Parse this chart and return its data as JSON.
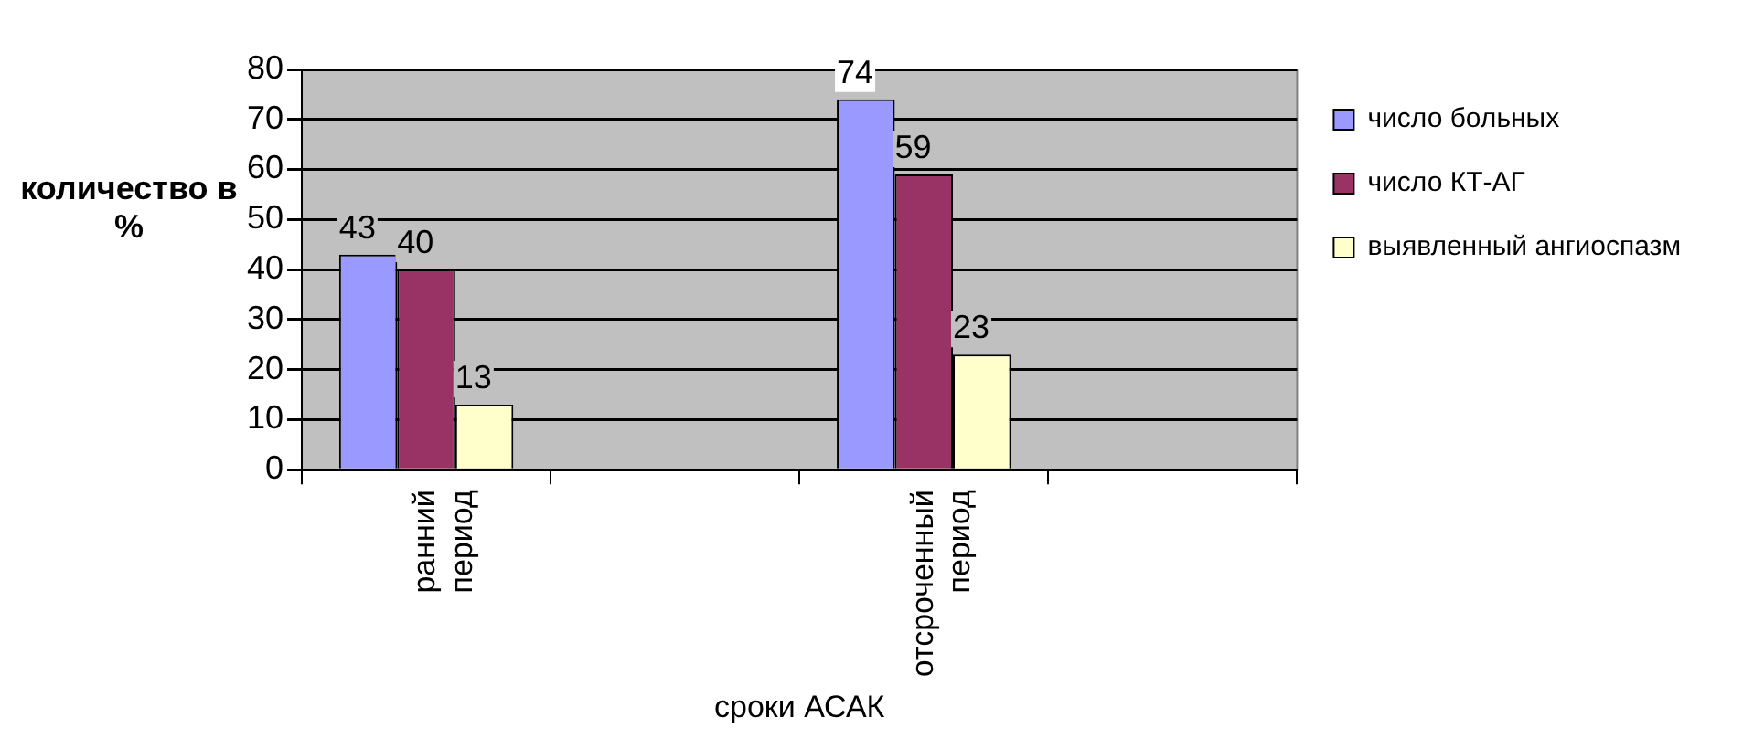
{
  "chart_data": {
    "type": "bar",
    "xlabel": "сроки АСАК",
    "ylabel": "количество  в %",
    "categories": [
      "ранний период",
      null,
      "отсроченный период",
      null
    ],
    "series": [
      {
        "name": "число больных",
        "color": "#9999ff",
        "values": [
          43,
          null,
          74,
          null
        ]
      },
      {
        "name": "число КТ-АГ",
        "color": "#993366",
        "values": [
          40,
          null,
          59,
          null
        ]
      },
      {
        "name": "выявленный ангиоспазм",
        "color": "#ffffcc",
        "values": [
          13,
          null,
          23,
          null
        ]
      }
    ],
    "ylim": [
      0,
      80
    ],
    "yticks": [
      0,
      10,
      20,
      30,
      40,
      50,
      60,
      70,
      80
    ],
    "grid": "y",
    "legend": "right",
    "data_labels": true
  }
}
